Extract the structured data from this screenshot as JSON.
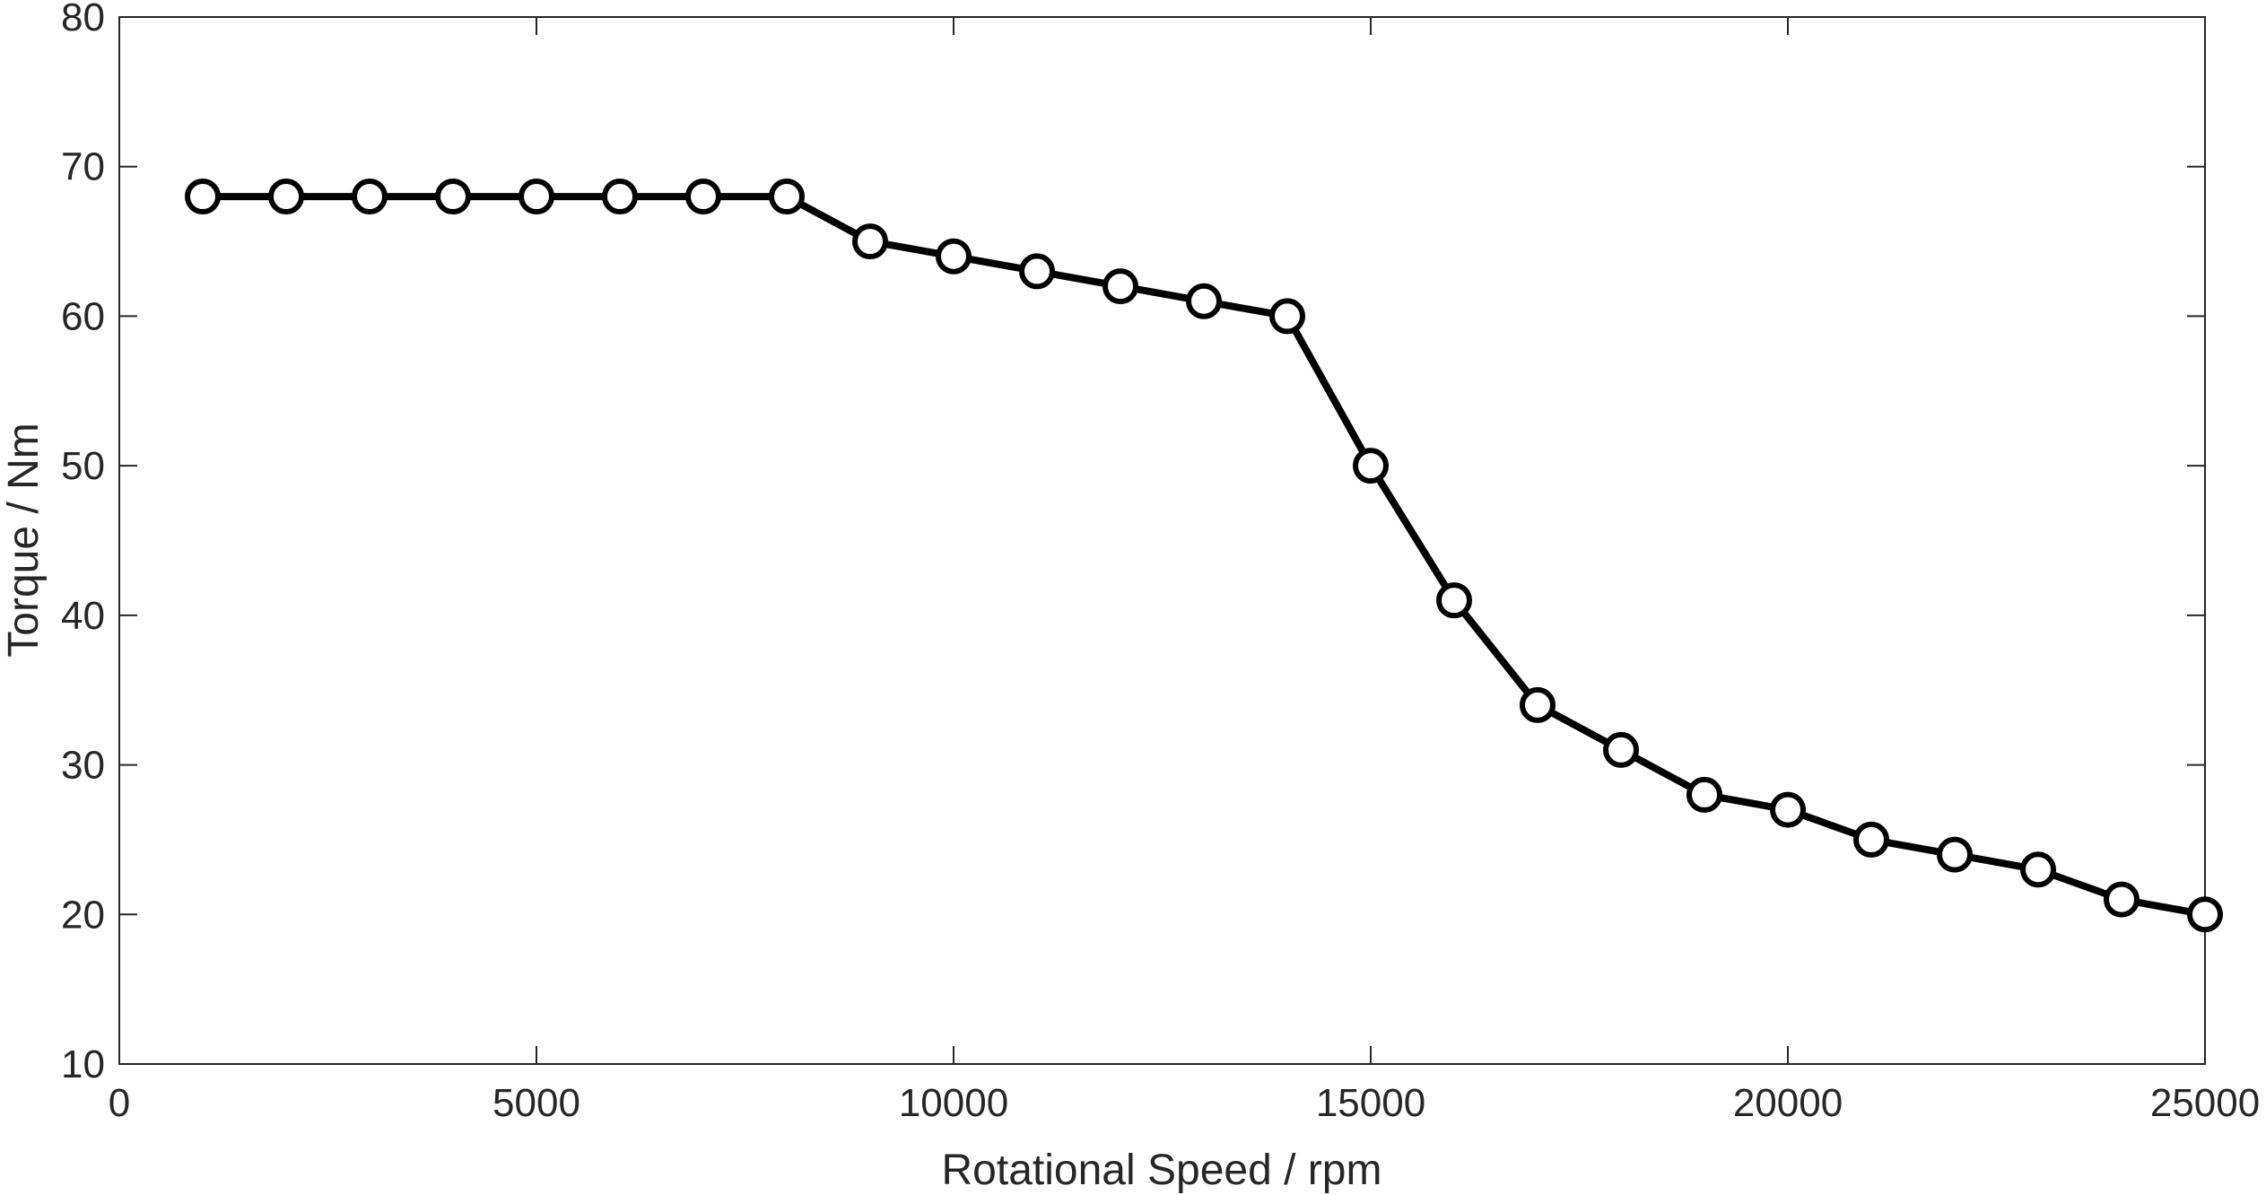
{
  "chart_data": {
    "type": "line",
    "title": "",
    "xlabel": "Rotational Speed / rpm",
    "ylabel": "Torque / Nm",
    "xlim": [
      0,
      25000
    ],
    "ylim": [
      10,
      80
    ],
    "x_ticks": [
      0,
      5000,
      10000,
      15000,
      20000,
      25000
    ],
    "y_ticks": [
      10,
      20,
      30,
      40,
      50,
      60,
      70,
      80
    ],
    "grid": false,
    "legend": "none",
    "marker": "circle",
    "line_color": "#000000",
    "axis_color": "#262626",
    "series": [
      {
        "x": [
          1000,
          2000,
          3000,
          4000,
          5000,
          6000,
          7000,
          8000,
          9000,
          10000,
          11000,
          12000,
          13000,
          14000,
          15000,
          16000,
          17000,
          18000,
          19000,
          20000,
          21000,
          22000,
          23000,
          24000,
          25000
        ],
        "y": [
          68,
          68,
          68,
          68,
          68,
          68,
          68,
          68,
          65,
          64,
          63,
          62,
          61,
          60,
          50,
          41,
          34,
          31,
          28,
          27,
          25,
          24,
          23,
          21,
          20
        ]
      }
    ]
  }
}
